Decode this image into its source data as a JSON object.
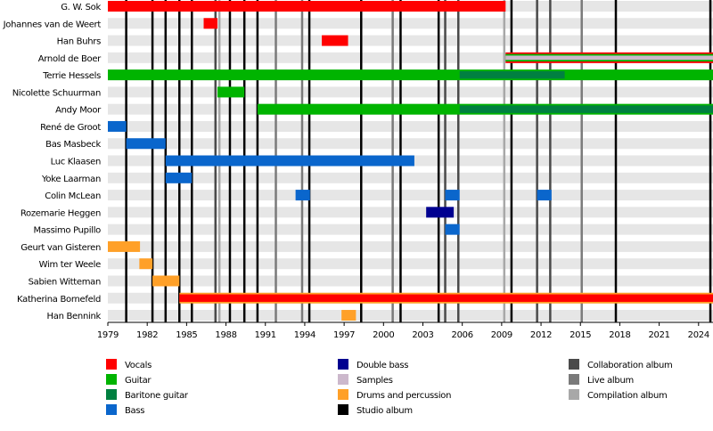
{
  "chart_data": {
    "type": "timeline",
    "xlim": [
      1979,
      2025.1
    ],
    "xticks": [
      1979,
      1982,
      1985,
      1988,
      1991,
      1994,
      1997,
      2000,
      2003,
      2006,
      2009,
      2012,
      2015,
      2018,
      2021,
      2024
    ],
    "roles": [
      {
        "name": "Vocals",
        "color": "#ff0000"
      },
      {
        "name": "Guitar",
        "color": "#00b400"
      },
      {
        "name": "Baritone guitar",
        "color": "#008040"
      },
      {
        "name": "Bass",
        "color": "#0a66cc"
      },
      {
        "name": "Double bass",
        "color": "#000090"
      },
      {
        "name": "Samples",
        "color": "#ccb8cc"
      },
      {
        "name": "Drums and percussion",
        "color": "#ffa028"
      }
    ],
    "album_types": [
      {
        "name": "Studio album",
        "color": "#000000",
        "years": [
          1980.4,
          1982.4,
          1983.4,
          1984.45,
          1985.4,
          1988.3,
          1989.4,
          1990.4,
          1994.35,
          1998.3,
          2001.3,
          2004.2,
          2009.75,
          2017.7,
          2024.9
        ]
      },
      {
        "name": "Collaboration album",
        "color": "#4a4a4a",
        "years": [
          1987.2,
          2004.7,
          2005.7,
          2011.7,
          2012.7
        ]
      },
      {
        "name": "Live album",
        "color": "#7a7a7a",
        "years": [
          1991.8,
          1993.8,
          2000.7,
          2015.1
        ]
      },
      {
        "name": "Compilation album",
        "color": "#a8a8a8",
        "years": [
          1987.5,
          2009.2
        ]
      }
    ],
    "members": [
      {
        "name": "G. W. Sok",
        "periods": [
          {
            "role": "Vocals",
            "start": 1979,
            "end": 2009.3
          }
        ]
      },
      {
        "name": "Johannes van de Weert",
        "periods": [
          {
            "role": "Vocals",
            "start": 1986.3,
            "end": 1987.35
          }
        ]
      },
      {
        "name": "Han Buhrs",
        "periods": [
          {
            "role": "Vocals",
            "start": 1995.3,
            "end": 1997.3
          }
        ]
      },
      {
        "name": "Arnold de Boer",
        "periods": [
          {
            "role": "Vocals",
            "start": 2009.3,
            "end": 2025.1
          },
          {
            "role": "Guitar",
            "start": 2009.3,
            "end": 2025.1
          },
          {
            "role": "Samples",
            "start": 2009.3,
            "end": 2025.1
          }
        ]
      },
      {
        "name": "Terrie Hessels",
        "periods": [
          {
            "role": "Guitar",
            "start": 1979,
            "end": 2025.1
          },
          {
            "role": "Baritone guitar",
            "start": 2005.8,
            "end": 2013.8
          }
        ]
      },
      {
        "name": "Nicolette Schuurman",
        "periods": [
          {
            "role": "Guitar",
            "start": 1987.35,
            "end": 1989.4
          }
        ]
      },
      {
        "name": "Andy Moor",
        "periods": [
          {
            "role": "Guitar",
            "start": 1990.4,
            "end": 2025.1
          },
          {
            "role": "Baritone guitar",
            "start": 2005.8,
            "end": 2025.1
          }
        ]
      },
      {
        "name": "René de Groot",
        "periods": [
          {
            "role": "Bass",
            "start": 1979,
            "end": 1980.4
          }
        ]
      },
      {
        "name": "Bas Masbeck",
        "periods": [
          {
            "role": "Bass",
            "start": 1980.4,
            "end": 1983.4
          }
        ]
      },
      {
        "name": "Luc Klaasen",
        "periods": [
          {
            "role": "Bass",
            "start": 1983.4,
            "end": 2002.35
          }
        ]
      },
      {
        "name": "Yoke Laarman",
        "periods": [
          {
            "role": "Bass",
            "start": 1983.4,
            "end": 1985.4
          }
        ]
      },
      {
        "name": "Colin McLean",
        "periods": [
          {
            "role": "Bass",
            "start": 1993.3,
            "end": 1994.4
          },
          {
            "role": "Bass",
            "start": 2004.7,
            "end": 2005.8
          },
          {
            "role": "Bass",
            "start": 2011.7,
            "end": 2012.8
          }
        ]
      },
      {
        "name": "Rozemarie Heggen",
        "periods": [
          {
            "role": "Double bass",
            "start": 2003.25,
            "end": 2005.35
          }
        ]
      },
      {
        "name": "Massimo Pupillo",
        "periods": [
          {
            "role": "Bass",
            "start": 2004.7,
            "end": 2005.8
          }
        ]
      },
      {
        "name": "Geurt van Gisteren",
        "periods": [
          {
            "role": "Drums and percussion",
            "start": 1979,
            "end": 1981.45
          }
        ]
      },
      {
        "name": "Wim ter Weele",
        "periods": [
          {
            "role": "Drums and percussion",
            "start": 1981.4,
            "end": 1982.4
          }
        ]
      },
      {
        "name": "Sabien Witteman",
        "periods": [
          {
            "role": "Drums and percussion",
            "start": 1982.4,
            "end": 1984.45
          }
        ]
      },
      {
        "name": "Katherina Bornefeld",
        "periods": [
          {
            "role": "Drums and percussion",
            "start": 1984.45,
            "end": 2025.1
          },
          {
            "role": "Vocals",
            "start": 1984.45,
            "end": 2025.1
          }
        ]
      },
      {
        "name": "Han Bennink",
        "periods": [
          {
            "role": "Drums and percussion",
            "start": 1996.8,
            "end": 1997.9
          }
        ]
      }
    ]
  }
}
